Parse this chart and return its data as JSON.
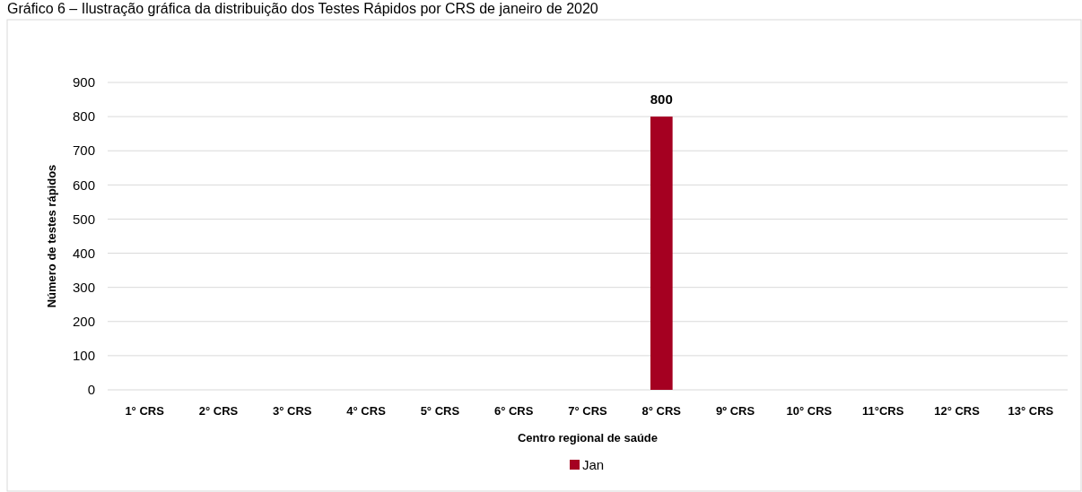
{
  "chart_data": {
    "type": "bar",
    "title": "Gráfico 6 – Ilustração gráfica da distribuição dos Testes Rápidos por CRS de janeiro de 2020",
    "xlabel": "Centro regional de saúde",
    "ylabel": "Número de testes rápidos",
    "categories": [
      "1° CRS",
      "2° CRS",
      "3° CRS",
      "4° CRS",
      "5° CRS",
      "6° CRS",
      "7° CRS",
      "8° CRS",
      "9º CRS",
      "10° CRS",
      "11°CRS",
      "12° CRS",
      "13° CRS"
    ],
    "series": [
      {
        "name": "Jan",
        "color": "#a50021",
        "values": [
          0,
          0,
          0,
          0,
          0,
          0,
          0,
          800,
          0,
          0,
          0,
          0,
          0
        ],
        "value_labels": [
          null,
          null,
          null,
          null,
          null,
          null,
          null,
          "800",
          null,
          null,
          null,
          null,
          null
        ]
      }
    ],
    "ylim": [
      0,
      900
    ],
    "yticks": [
      0,
      100,
      200,
      300,
      400,
      500,
      600,
      700,
      800,
      900
    ],
    "grid": "y",
    "legend": "bottom"
  }
}
